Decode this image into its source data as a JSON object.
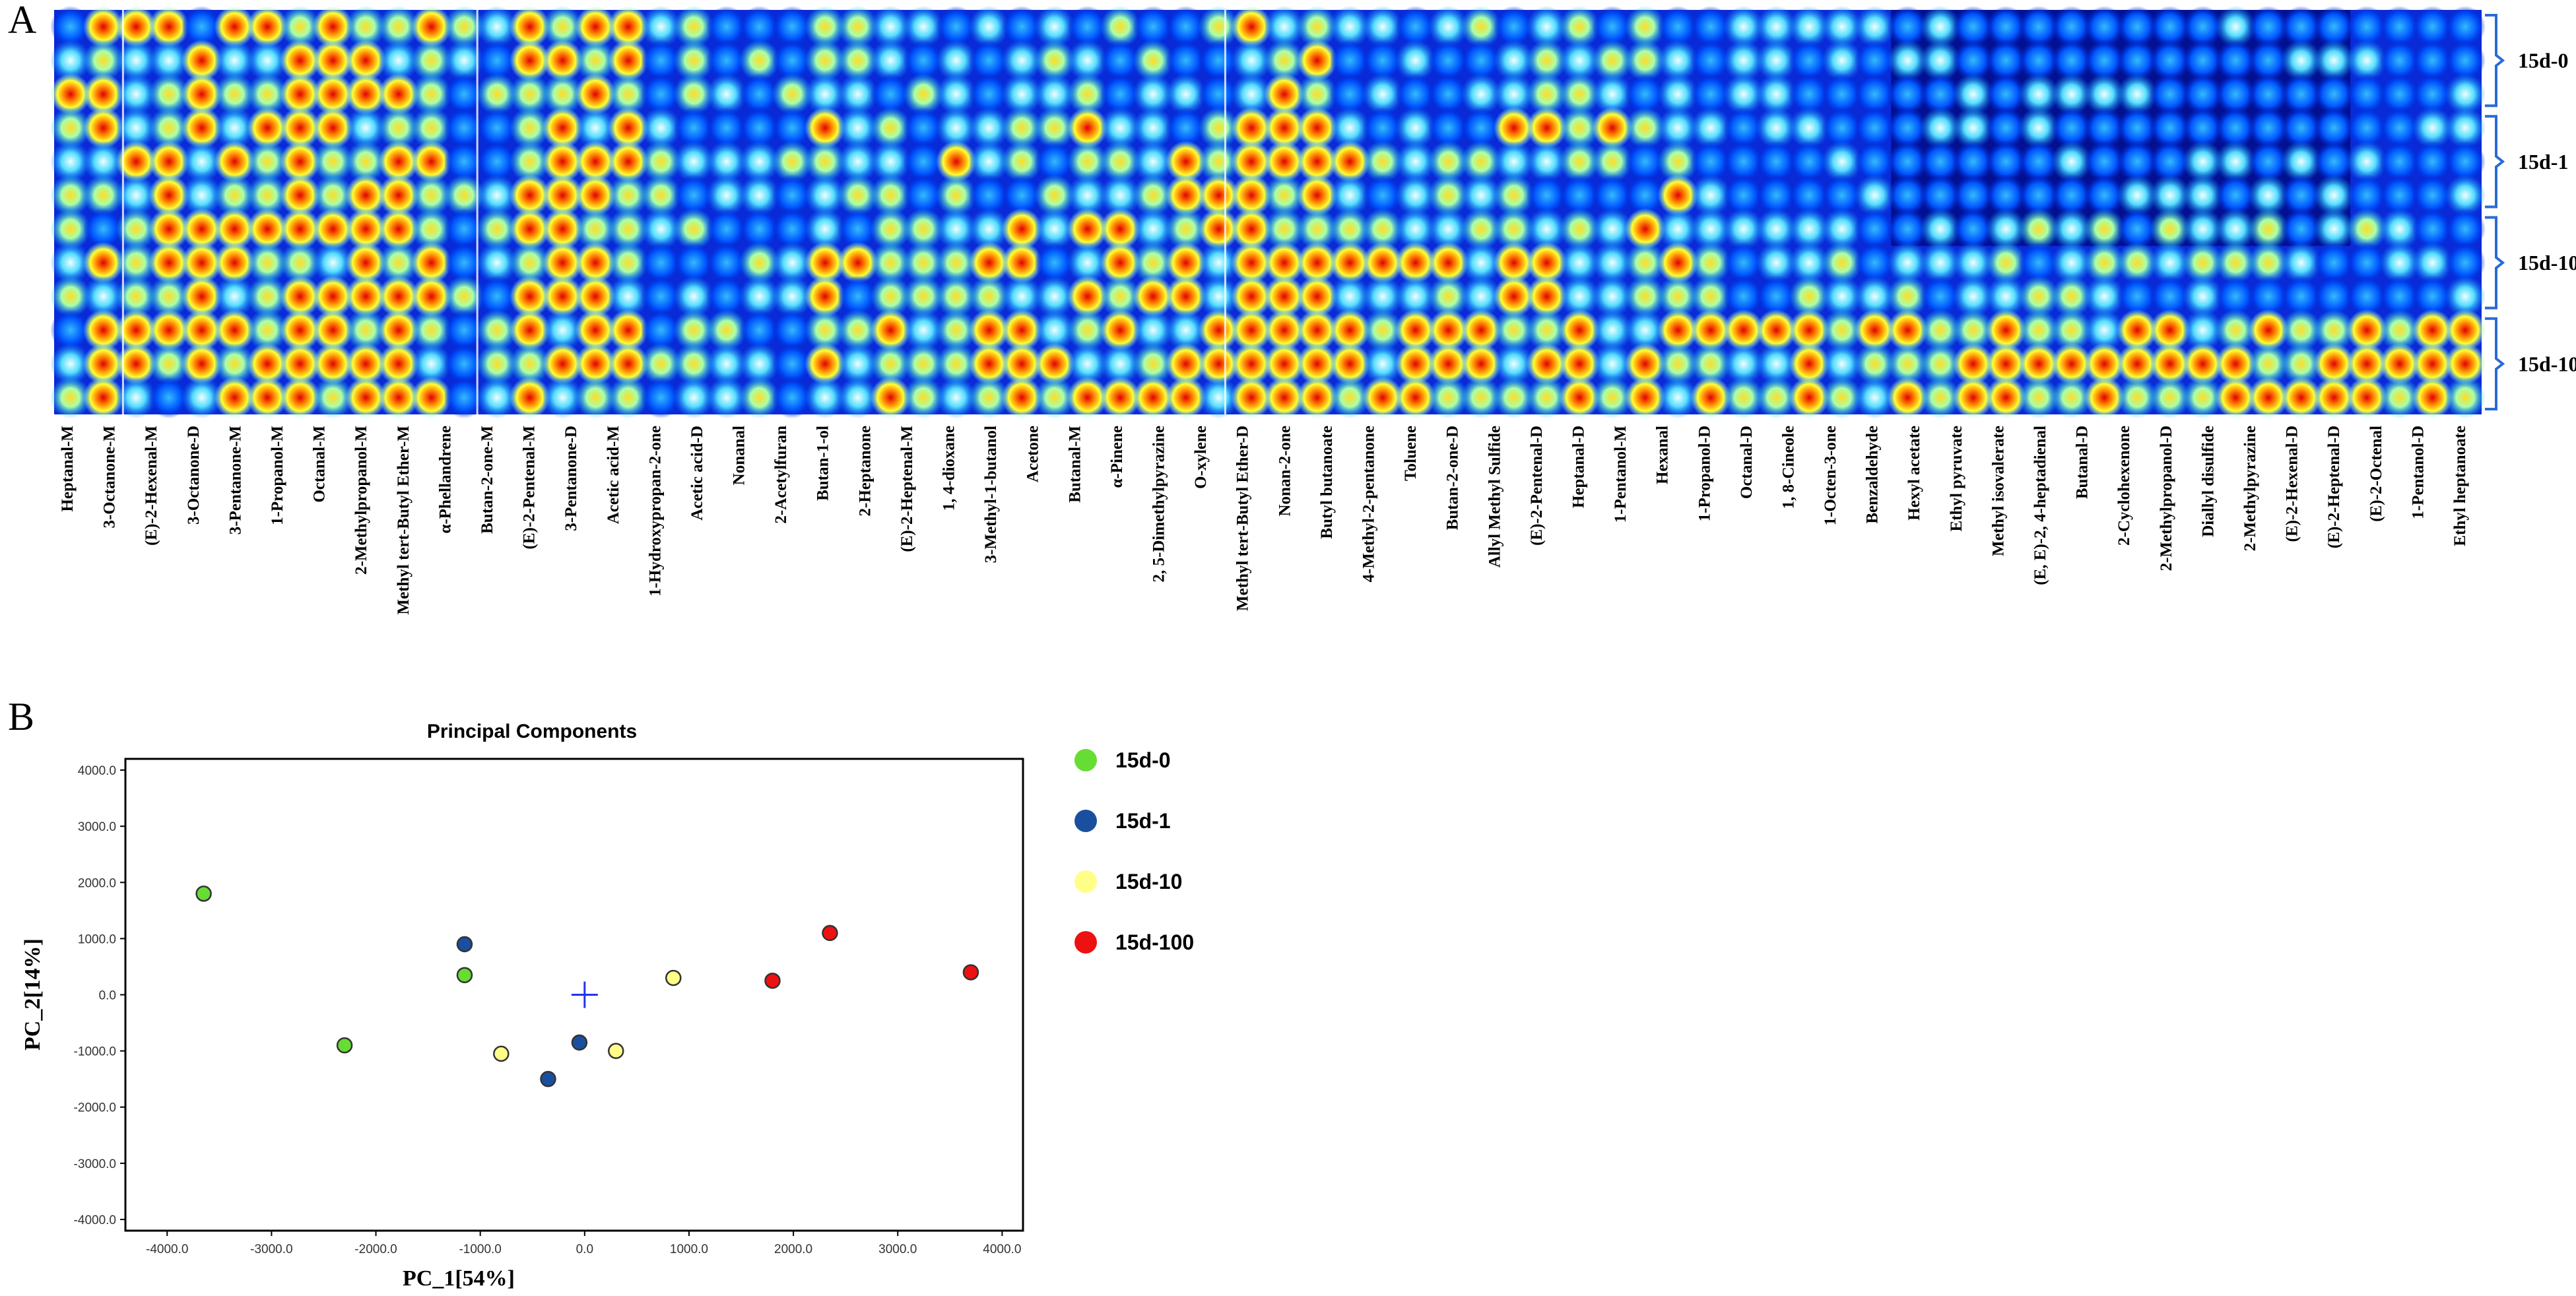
{
  "panel_a_label": "A",
  "panel_b_label": "B",
  "chart_data": [
    {
      "type": "heatmap",
      "title": "",
      "groups": [
        "15d-0",
        "15d-1",
        "15d-10",
        "15d-100"
      ],
      "rows_per_group": 3,
      "rows": 12,
      "columns": 74,
      "colormap": [
        "#00008a",
        "#0033ff",
        "#00bfff",
        "#7fffff",
        "#ffff33",
        "#ff8800",
        "#e00000"
      ],
      "compound_labels": [
        "Heptanal-M",
        "3-Octanone-M",
        "(E)-2-Hexenal-M",
        "3-Octanone-D",
        "3-Pentanone-M",
        "1-Propanol-M",
        "Octanal-M",
        "2-Methylpropanol-M",
        "Methyl tert-Butyl Ether-M",
        "α-Phellandrene",
        "Butan-2-one-M",
        "(E)-2-Pentenal-M",
        "3-Pentanone-D",
        "Acetic acid-M",
        "1-Hydroxypropan-2-one",
        "Acetic acid-D",
        "Nonanal",
        "2-Acetylfuran",
        "Butan-1-ol",
        "2-Heptanone",
        "(E)-2-Heptenal-M",
        "1, 4-dioxane",
        "3-Methyl-1-butanol",
        "Acetone",
        "Butanal-M",
        "α-Pinene",
        "2, 5-Dimethylpyrazine",
        "O-xylene",
        "Methyl tert-Butyl Ether-D",
        "Nonan-2-one",
        "Butyl butanoate",
        "4-Methyl-2-pentanone",
        "Toluene",
        "Butan-2-one-D",
        "Allyl Methyl Sulfide",
        "(E)-2-Pentenal-D",
        "Heptanal-D",
        "1-Pentanol-M",
        "Hexanal",
        "1-Propanol-D",
        "Octanal-D",
        "1, 8-Cineole",
        "1-Octen-3-one",
        "Benzaldehyde",
        "Hexyl acetate",
        "Ethyl pyruvate",
        "Methyl isovalerate",
        "(E, E)-2, 4-heptadienal",
        "Butanal-D",
        "2-Cyclohexenone",
        "2-Methylpropanol-D",
        "Diallyl disulfide",
        "2-Methylpyrazine",
        "(E)-2-Hexenal-D",
        "(E)-2-Heptenal-D",
        "(E)-2-Octenal",
        "1-Pentanol-D",
        "Ethyl heptanoate"
      ]
    },
    {
      "type": "scatter",
      "title": "Principal Components",
      "xlabel": "PC_1[54%]",
      "ylabel": "PC_2[14%]",
      "xlim": [
        -4400,
        4200
      ],
      "ylim": [
        -4200,
        4200
      ],
      "xticks": [
        "-4000.0",
        "-3000.0",
        "-2000.0",
        "-1000.0",
        "0.0",
        "1000.0",
        "2000.0",
        "3000.0",
        "4000.0"
      ],
      "yticks": [
        "4000.0",
        "3000.0",
        "2000.0",
        "1000.0",
        "0.0",
        "-1000.0",
        "-2000.0",
        "-3000.0",
        "-4000.0"
      ],
      "origin_marker": "+",
      "series": [
        {
          "name": "15d-0",
          "color": "#66dd33",
          "points": [
            [
              -3650,
              1800
            ],
            [
              -2300,
              -900
            ],
            [
              -1150,
              350
            ]
          ]
        },
        {
          "name": "15d-1",
          "color": "#1a4fa0",
          "points": [
            [
              -1150,
              900
            ],
            [
              -350,
              -1500
            ],
            [
              -50,
              -850
            ]
          ]
        },
        {
          "name": "15d-10",
          "color": "#ffff88",
          "points": [
            [
              -800,
              -1050
            ],
            [
              300,
              -1000
            ],
            [
              850,
              300
            ]
          ]
        },
        {
          "name": "15d-100",
          "color": "#ee1111",
          "points": [
            [
              1800,
              250
            ],
            [
              2350,
              1100
            ],
            [
              3700,
              400
            ]
          ]
        }
      ]
    }
  ]
}
